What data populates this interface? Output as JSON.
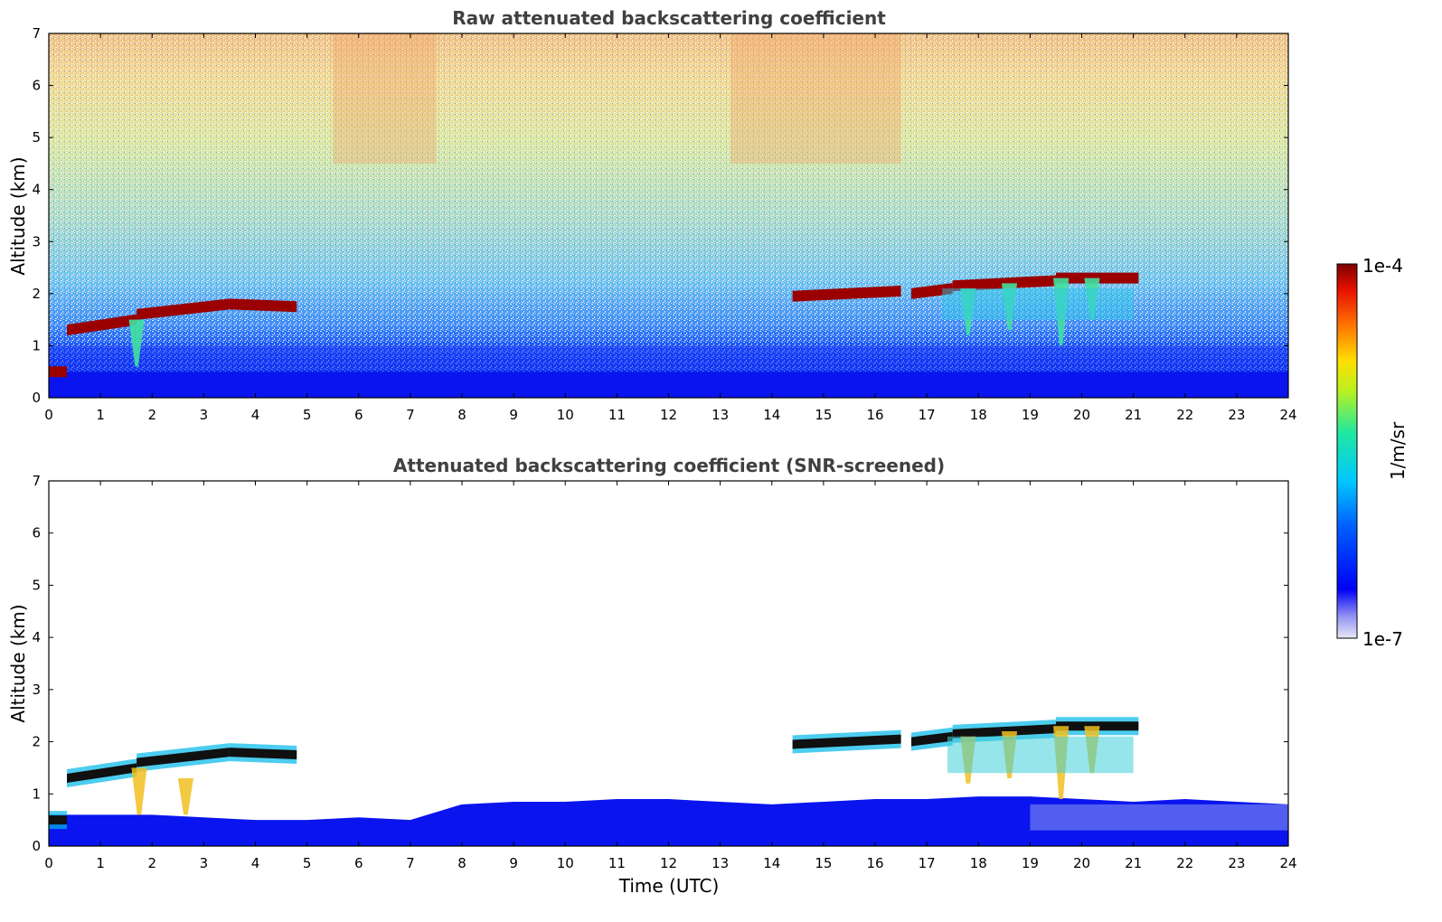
{
  "chart_data": [
    {
      "type": "heatmap",
      "title": "Raw attenuated backscattering coefficient",
      "xlabel": "",
      "ylabel": "Altitude (km)",
      "xlim": [
        0,
        24
      ],
      "ylim": [
        0,
        7
      ],
      "x_ticks": [
        "0",
        "1",
        "2",
        "3",
        "4",
        "5",
        "6",
        "7",
        "8",
        "9",
        "10",
        "11",
        "12",
        "13",
        "14",
        "15",
        "16",
        "17",
        "18",
        "19",
        "20",
        "21",
        "22",
        "23",
        "24"
      ],
      "y_ticks": [
        "0",
        "1",
        "2",
        "3",
        "4",
        "5",
        "6",
        "7"
      ],
      "grid": false,
      "cloud_layers": [
        {
          "x": [
            0.0,
            0.35
          ],
          "alt_km": [
            0.5,
            0.5
          ]
        },
        {
          "x": [
            0.35,
            1.7
          ],
          "alt_km": [
            1.3,
            1.5
          ]
        },
        {
          "x": [
            1.7,
            3.5
          ],
          "alt_km": [
            1.6,
            1.8
          ]
        },
        {
          "x": [
            3.5,
            4.8
          ],
          "alt_km": [
            1.8,
            1.75
          ]
        },
        {
          "x": [
            14.4,
            16.5
          ],
          "alt_km": [
            1.95,
            2.05
          ]
        },
        {
          "x": [
            16.7,
            17.5
          ],
          "alt_km": [
            2.0,
            2.1
          ]
        },
        {
          "x": [
            17.5,
            19.5
          ],
          "alt_km": [
            2.15,
            2.25
          ]
        },
        {
          "x": [
            19.5,
            21.1
          ],
          "alt_km": [
            2.3,
            2.3
          ]
        }
      ],
      "boundary_layer_top_km": 0.5
    },
    {
      "type": "heatmap",
      "title": "Attenuated backscattering coefficient (SNR-screened)",
      "xlabel": "Time (UTC)",
      "ylabel": "Altitude (km)",
      "xlim": [
        0,
        24
      ],
      "ylim": [
        0,
        7
      ],
      "x_ticks": [
        "0",
        "1",
        "2",
        "3",
        "4",
        "5",
        "6",
        "7",
        "8",
        "9",
        "10",
        "11",
        "12",
        "13",
        "14",
        "15",
        "16",
        "17",
        "18",
        "19",
        "20",
        "21",
        "22",
        "23",
        "24"
      ],
      "y_ticks": [
        "0",
        "1",
        "2",
        "3",
        "4",
        "5",
        "6",
        "7"
      ],
      "grid": false,
      "boundary_layer_profile": {
        "x": [
          0,
          1,
          2,
          3,
          4,
          5,
          6,
          7,
          8,
          9,
          10,
          11,
          12,
          13,
          14,
          15,
          16,
          17,
          18,
          19,
          20,
          21,
          22,
          23,
          24
        ],
        "top_km": [
          0.6,
          0.6,
          0.6,
          0.55,
          0.5,
          0.5,
          0.55,
          0.5,
          0.8,
          0.85,
          0.85,
          0.9,
          0.9,
          0.85,
          0.8,
          0.85,
          0.9,
          0.9,
          0.95,
          0.95,
          0.9,
          0.85,
          0.9,
          0.85,
          0.8
        ]
      }
    }
  ],
  "colorbar": {
    "label": "1/m/sr",
    "max_label": "1e-4",
    "min_label": "1e-7",
    "scale": "log",
    "range": [
      1e-07,
      0.0001
    ],
    "colormap": "jet"
  }
}
